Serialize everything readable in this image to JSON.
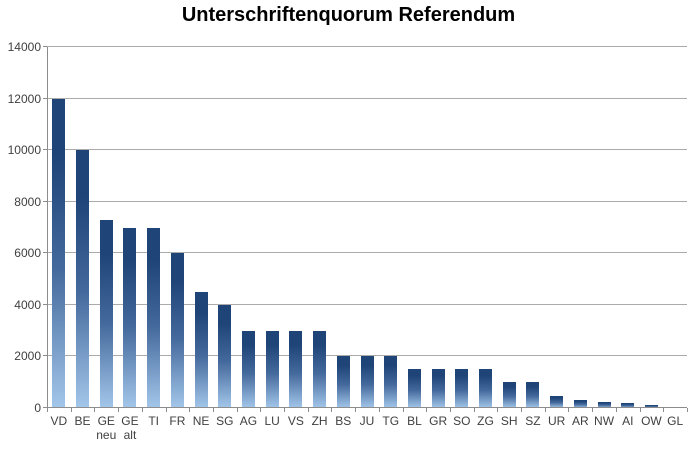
{
  "chart_data": {
    "type": "bar",
    "title": "Unterschriftenquorum Referendum",
    "categories": [
      "VD",
      "BE",
      "GE neu",
      "GE alt",
      "TI",
      "FR",
      "NE",
      "SG",
      "AG",
      "LU",
      "VS",
      "ZH",
      "BS",
      "JU",
      "TG",
      "BL",
      "GR",
      "SO",
      "ZG",
      "SH",
      "SZ",
      "UR",
      "AR",
      "NW",
      "AI",
      "OW",
      "GL"
    ],
    "values": [
      12000,
      10000,
      7300,
      7000,
      7000,
      6000,
      4500,
      4000,
      3000,
      3000,
      3000,
      3000,
      2000,
      2000,
      2000,
      1500,
      1500,
      1500,
      1500,
      1000,
      1000,
      450,
      300,
      250,
      200,
      100,
      0
    ],
    "xlabel": "",
    "ylabel": "",
    "ylim": [
      0,
      14000
    ],
    "yticks": [
      0,
      2000,
      4000,
      6000,
      8000,
      10000,
      12000,
      14000
    ],
    "grid": "horizontal",
    "legend_position": "none",
    "colors": {
      "bar_gradient_top": "#1f4477",
      "bar_gradient_mid": "#44699c",
      "bar_gradient_bottom": "#a3c7ea",
      "gridline": "#ababab",
      "axis": "#8c8c8c",
      "tick_label": "#3f3f3f",
      "title": "#000000",
      "background": "#ffffff"
    }
  }
}
